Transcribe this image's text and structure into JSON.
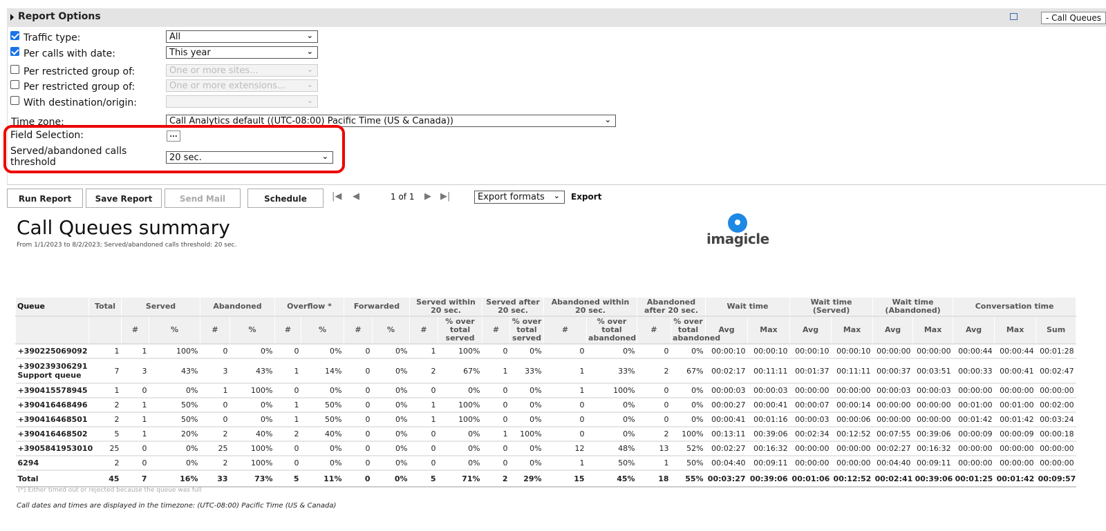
{
  "options": {
    "title": "Report Options",
    "window_button": "- Call Queues",
    "rows": [
      {
        "label": "Traffic type:",
        "checked": true,
        "value": "All",
        "disabled": false
      },
      {
        "label": "Per calls with date:",
        "checked": true,
        "value": "This year",
        "disabled": false
      },
      {
        "label": "Per restricted group of:",
        "checked": false,
        "value": "One or more sites...",
        "disabled": true
      },
      {
        "label": "Per restricted group of:",
        "checked": false,
        "value": "One or more extensions...",
        "disabled": true
      },
      {
        "label": "With destination/origin:",
        "checked": false,
        "value": "",
        "disabled": true
      }
    ],
    "timezone_label": "Time zone:",
    "timezone_value": "Call Analytics default ((UTC-08:00) Pacific Time (US & Canada))",
    "field_selection_label": "Field Selection:",
    "field_selection_button": "...",
    "threshold_label": "Served/abandoned calls threshold",
    "threshold_value": "20 sec.",
    "highlight_color": "#e00000"
  },
  "toolbar": {
    "run": "Run Report",
    "save": "Save Report",
    "mail": "Send Mail",
    "schedule": "Schedule",
    "page": "1 of 1",
    "export_select": "Export formats",
    "export": "Export"
  },
  "report": {
    "title": "Call Queues summary",
    "subtitle": "From 1/1/2023 to 8/2/2023; Served/abandoned calls threshold: 20 sec.",
    "logo": "imagicle",
    "groups": [
      [
        "Queue",
        1
      ],
      [
        "Total",
        1
      ],
      [
        "Served",
        2
      ],
      [
        "Abandoned",
        2
      ],
      [
        "Overflow *",
        2
      ],
      [
        "Forwarded",
        2
      ],
      [
        "Served within 20 sec.",
        2
      ],
      [
        "Served after 20 sec.",
        2
      ],
      [
        "Abandoned within 20 sec.",
        2
      ],
      [
        "Abandoned after 20 sec.",
        2
      ],
      [
        "Wait time",
        2
      ],
      [
        "Wait time (Served)",
        2
      ],
      [
        "Wait time (Abandoned)",
        2
      ],
      [
        "Conversation time",
        3
      ]
    ],
    "subheaders": [
      "",
      "",
      "#",
      "%",
      "#",
      "%",
      "#",
      "%",
      "#",
      "%",
      "#",
      "% over total served",
      "#",
      "% over total served",
      "#",
      "% over total abandoned",
      "#",
      "% over total abandoned",
      "Avg",
      "Max",
      "Avg",
      "Max",
      "Avg",
      "Max",
      "Avg",
      "Max",
      "Sum"
    ],
    "rows": [
      [
        "+390225069092",
        "1",
        "1",
        "100%",
        "0",
        "0%",
        "0",
        "0%",
        "0",
        "0%",
        "1",
        "100%",
        "0",
        "0%",
        "0",
        "0%",
        "0",
        "0%",
        "00:00:10",
        "00:00:10",
        "00:00:10",
        "00:00:10",
        "00:00:00",
        "00:00:00",
        "00:00:44",
        "00:00:44",
        "00:01:28"
      ],
      [
        "+390239306291\nSupport queue",
        "7",
        "3",
        "43%",
        "3",
        "43%",
        "1",
        "14%",
        "0",
        "0%",
        "2",
        "67%",
        "1",
        "33%",
        "1",
        "33%",
        "2",
        "67%",
        "00:02:17",
        "00:11:11",
        "00:01:37",
        "00:11:11",
        "00:00:37",
        "00:03:51",
        "00:00:33",
        "00:00:41",
        "00:02:47"
      ],
      [
        "+390415578945",
        "1",
        "0",
        "0%",
        "1",
        "100%",
        "0",
        "0%",
        "0",
        "0%",
        "0",
        "0%",
        "0",
        "0%",
        "1",
        "100%",
        "0",
        "0%",
        "00:00:03",
        "00:00:03",
        "00:00:00",
        "00:00:00",
        "00:00:03",
        "00:00:03",
        "00:00:00",
        "00:00:00",
        "00:00:00"
      ],
      [
        "+390416468496",
        "2",
        "1",
        "50%",
        "0",
        "0%",
        "1",
        "50%",
        "0",
        "0%",
        "1",
        "100%",
        "0",
        "0%",
        "0",
        "0%",
        "0",
        "0%",
        "00:00:27",
        "00:00:41",
        "00:00:07",
        "00:00:14",
        "00:00:00",
        "00:00:00",
        "00:01:00",
        "00:01:00",
        "00:02:00"
      ],
      [
        "+390416468501",
        "2",
        "1",
        "50%",
        "0",
        "0%",
        "1",
        "50%",
        "0",
        "0%",
        "1",
        "100%",
        "0",
        "0%",
        "0",
        "0%",
        "0",
        "0%",
        "00:00:41",
        "00:01:16",
        "00:00:03",
        "00:00:06",
        "00:00:00",
        "00:00:00",
        "00:01:42",
        "00:01:42",
        "00:03:24"
      ],
      [
        "+390416468502",
        "5",
        "1",
        "20%",
        "2",
        "40%",
        "2",
        "40%",
        "0",
        "0%",
        "0",
        "0%",
        "1",
        "100%",
        "0",
        "0%",
        "2",
        "100%",
        "00:13:11",
        "00:39:06",
        "00:02:34",
        "00:12:52",
        "00:07:55",
        "00:39:06",
        "00:00:09",
        "00:00:09",
        "00:00:18"
      ],
      [
        "+3905841953010",
        "25",
        "0",
        "0%",
        "25",
        "100%",
        "0",
        "0%",
        "0",
        "0%",
        "0",
        "0%",
        "0",
        "0%",
        "12",
        "48%",
        "13",
        "52%",
        "00:02:27",
        "00:16:32",
        "00:00:00",
        "00:00:00",
        "00:02:27",
        "00:16:32",
        "00:00:00",
        "00:00:00",
        "00:00:00"
      ],
      [
        "6294",
        "2",
        "0",
        "0%",
        "2",
        "100%",
        "0",
        "0%",
        "0",
        "0%",
        "0",
        "0%",
        "0",
        "0%",
        "1",
        "50%",
        "1",
        "50%",
        "00:04:40",
        "00:09:11",
        "00:00:00",
        "00:00:00",
        "00:04:40",
        "00:09:11",
        "00:00:00",
        "00:00:00",
        "00:00:00"
      ]
    ],
    "total": [
      "Total",
      "45",
      "7",
      "16%",
      "33",
      "73%",
      "5",
      "11%",
      "0",
      "0%",
      "5",
      "71%",
      "2",
      "29%",
      "15",
      "45%",
      "18",
      "55%",
      "00:03:27",
      "00:39:06",
      "00:01:06",
      "00:12:52",
      "00:02:41",
      "00:39:06",
      "00:01:25",
      "00:01:42",
      "00:09:57"
    ],
    "footnote": "(*) Either timed out or rejected because the queue was full",
    "timezone_note": "Call dates and times are displayed in the timezone: (UTC-08:00) Pacific Time (US & Canada)"
  }
}
